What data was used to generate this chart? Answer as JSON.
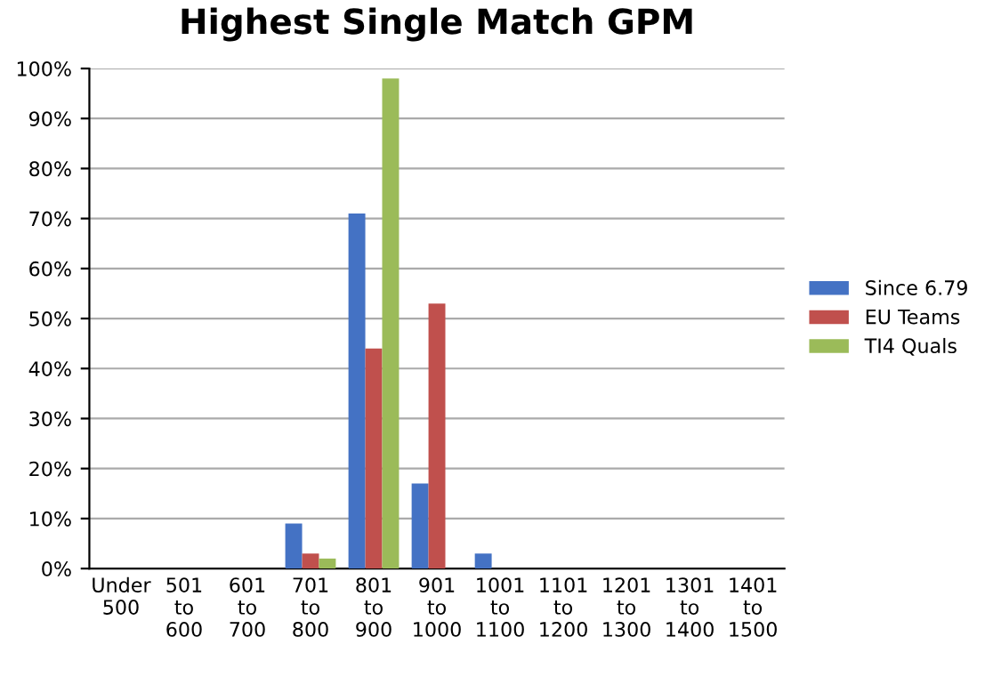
{
  "chart_data": {
    "type": "bar",
    "title": "Highest Single Match GPM",
    "categories": [
      "Under\n500",
      "501\nto\n600",
      "601\nto\n700",
      "701\nto\n800",
      "801\nto\n900",
      "901\nto\n1000",
      "1001\nto\n1100",
      "1101\nto\n1200",
      "1201\nto\n1300",
      "1301\nto\n1400",
      "1401\nto\n1500"
    ],
    "series": [
      {
        "name": "Since 6.79",
        "color": "#4472c4",
        "values": [
          0,
          0,
          0,
          9,
          71,
          17,
          3,
          0,
          0,
          0,
          0
        ]
      },
      {
        "name": "EU Teams",
        "color": "#c0504d",
        "values": [
          0,
          0,
          0,
          3,
          44,
          53,
          0,
          0,
          0,
          0,
          0
        ]
      },
      {
        "name": "TI4 Quals",
        "color": "#9bbb59",
        "values": [
          0,
          0,
          0,
          2,
          98,
          0,
          0,
          0,
          0,
          0,
          0
        ]
      }
    ],
    "ylim": [
      0,
      100
    ],
    "yticks": [
      {
        "value": 0,
        "label": "0%"
      },
      {
        "value": 10,
        "label": "10%"
      },
      {
        "value": 20,
        "label": "20%"
      },
      {
        "value": 30,
        "label": "30%"
      },
      {
        "value": 40,
        "label": "40%"
      },
      {
        "value": 50,
        "label": "50%"
      },
      {
        "value": 60,
        "label": "60%"
      },
      {
        "value": 70,
        "label": "70%"
      },
      {
        "value": 80,
        "label": "80%"
      },
      {
        "value": 90,
        "label": "90%"
      },
      {
        "value": 100,
        "label": "100%"
      }
    ],
    "grid": "y",
    "legend": "right"
  }
}
